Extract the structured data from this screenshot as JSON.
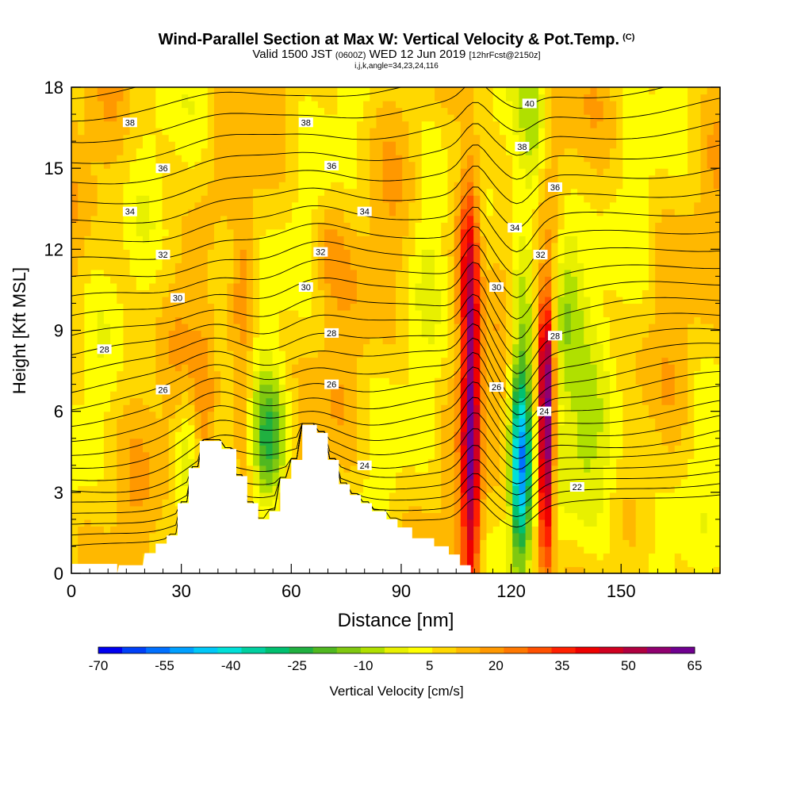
{
  "title": {
    "main": "Wind-Parallel Section at Max W: Vertical Velocity & Pot.Temp.",
    "main_suffix": "(C)",
    "sub_valid": "Valid 1500 JST",
    "sub_utc": "(0600Z)",
    "sub_date": "WED 12 Jun 2019",
    "sub_fcst": "[12hrFcst@2150z]",
    "sub2": "i,j,k,angle=34,23,24,116"
  },
  "colorbar": {
    "title": "Vertical Velocity [cm/s]",
    "tick_labels": [
      "-70",
      "-55",
      "-40",
      "-25",
      "-10",
      "5",
      "20",
      "35",
      "50",
      "65"
    ],
    "colors": [
      "#0000f0",
      "#0040f8",
      "#0070ff",
      "#00a0ff",
      "#00c8f8",
      "#00e0d8",
      "#00d0a0",
      "#00c070",
      "#20b040",
      "#50b820",
      "#80c810",
      "#b0e000",
      "#e8f000",
      "#ffff00",
      "#ffd800",
      "#ffb800",
      "#ff9800",
      "#ff7800",
      "#ff5000",
      "#ff2000",
      "#ee0000",
      "#d00020",
      "#b00040",
      "#900070",
      "#700090"
    ]
  },
  "chart_data": {
    "type": "heatmap",
    "xlabel": "Distance [nm]",
    "ylabel": "Height [Kft MSL]",
    "xlim": [
      0,
      177
    ],
    "ylim": [
      0,
      18
    ],
    "x_ticks": [
      0,
      30,
      60,
      90,
      120,
      150
    ],
    "y_ticks": [
      0,
      3,
      6,
      9,
      12,
      15,
      18
    ],
    "color_variable": "Vertical Velocity [cm/s]",
    "color_range": [
      -70,
      65
    ],
    "contour_variable": "Pot.Temp. (C)",
    "contour_labels": [
      {
        "value": "22",
        "x": 138,
        "y": 3.2
      },
      {
        "value": "24",
        "x": 80,
        "y": 4.0
      },
      {
        "value": "24",
        "x": 129,
        "y": 6.0
      },
      {
        "value": "26",
        "x": 25,
        "y": 6.8
      },
      {
        "value": "26",
        "x": 71,
        "y": 7.0
      },
      {
        "value": "26",
        "x": 116,
        "y": 6.9
      },
      {
        "value": "28",
        "x": 9,
        "y": 8.3
      },
      {
        "value": "28",
        "x": 71,
        "y": 8.9
      },
      {
        "value": "28",
        "x": 132,
        "y": 8.8
      },
      {
        "value": "30",
        "x": 29,
        "y": 10.2
      },
      {
        "value": "30",
        "x": 64,
        "y": 10.6
      },
      {
        "value": "30",
        "x": 116,
        "y": 10.6
      },
      {
        "value": "32",
        "x": 25,
        "y": 11.8
      },
      {
        "value": "32",
        "x": 68,
        "y": 11.9
      },
      {
        "value": "32",
        "x": 128,
        "y": 11.8
      },
      {
        "value": "34",
        "x": 16,
        "y": 13.4
      },
      {
        "value": "34",
        "x": 80,
        "y": 13.4
      },
      {
        "value": "34",
        "x": 121,
        "y": 12.8
      },
      {
        "value": "36",
        "x": 25,
        "y": 15.0
      },
      {
        "value": "36",
        "x": 71,
        "y": 15.1
      },
      {
        "value": "36",
        "x": 132,
        "y": 14.3
      },
      {
        "value": "38",
        "x": 16,
        "y": 16.7
      },
      {
        "value": "38",
        "x": 64,
        "y": 16.7
      },
      {
        "value": "38",
        "x": 123,
        "y": 15.8
      },
      {
        "value": "40",
        "x": 125,
        "y": 17.4
      }
    ],
    "terrain": [
      [
        0,
        0
      ],
      [
        12.5,
        0
      ],
      [
        13,
        0.3
      ],
      [
        19.5,
        0.3
      ],
      [
        20,
        0.75
      ],
      [
        23,
        0.75
      ],
      [
        23,
        1.1
      ],
      [
        26,
        1.1
      ],
      [
        26,
        1.4
      ],
      [
        29,
        1.4
      ],
      [
        29,
        2.6
      ],
      [
        32,
        2.6
      ],
      [
        32,
        3.9
      ],
      [
        35,
        3.9
      ],
      [
        35,
        4.9
      ],
      [
        41,
        4.9
      ],
      [
        41,
        4.6
      ],
      [
        45,
        4.6
      ],
      [
        45,
        3.6
      ],
      [
        48,
        3.6
      ],
      [
        48,
        2.6
      ],
      [
        51,
        2.6
      ],
      [
        51,
        2.0
      ],
      [
        54,
        2.0
      ],
      [
        54,
        2.3
      ],
      [
        57,
        2.3
      ],
      [
        57,
        3.5
      ],
      [
        60,
        3.5
      ],
      [
        60,
        4.2
      ],
      [
        63,
        4.2
      ],
      [
        63,
        5.5
      ],
      [
        67,
        5.5
      ],
      [
        67,
        5.2
      ],
      [
        70,
        5.2
      ],
      [
        70,
        4.2
      ],
      [
        73,
        4.2
      ],
      [
        73,
        3.3
      ],
      [
        76,
        3.3
      ],
      [
        76,
        2.9
      ],
      [
        79,
        2.9
      ],
      [
        79,
        2.6
      ],
      [
        82,
        2.6
      ],
      [
        82,
        2.3
      ],
      [
        86,
        2.3
      ],
      [
        86,
        2.0
      ],
      [
        89,
        2.0
      ],
      [
        89,
        1.7
      ],
      [
        93,
        1.7
      ],
      [
        93,
        1.3
      ],
      [
        99,
        1.3
      ],
      [
        99,
        1.0
      ],
      [
        103,
        1.0
      ],
      [
        103,
        0.7
      ],
      [
        106,
        0.7
      ],
      [
        106,
        0.3
      ],
      [
        109,
        0.3
      ],
      [
        109,
        0
      ],
      [
        177,
        0
      ]
    ],
    "features": [
      {
        "kind": "updraft",
        "x_center": 109,
        "y_center": 4.5,
        "peak_w": 50
      },
      {
        "kind": "downdraft",
        "x_center": 122,
        "y_center": 4.0,
        "peak_w": -45
      },
      {
        "kind": "updraft",
        "x_center": 129,
        "y_center": 4.0,
        "peak_w": 65
      },
      {
        "kind": "downdraft",
        "x_center": 54,
        "y_center": 5.0,
        "peak_w": -25
      }
    ]
  }
}
